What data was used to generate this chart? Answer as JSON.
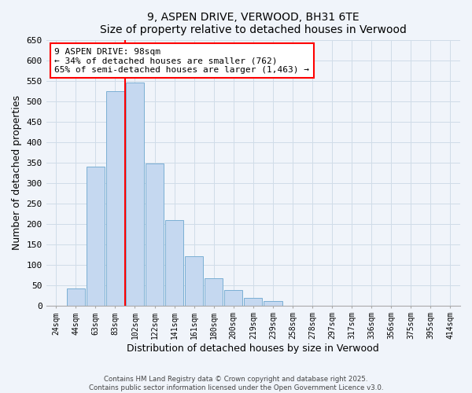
{
  "title": "9, ASPEN DRIVE, VERWOOD, BH31 6TE",
  "subtitle": "Size of property relative to detached houses in Verwood",
  "xlabel": "Distribution of detached houses by size in Verwood",
  "ylabel": "Number of detached properties",
  "bar_labels": [
    "24sqm",
    "44sqm",
    "63sqm",
    "83sqm",
    "102sqm",
    "122sqm",
    "141sqm",
    "161sqm",
    "180sqm",
    "200sqm",
    "219sqm",
    "239sqm",
    "258sqm",
    "278sqm",
    "297sqm",
    "317sqm",
    "336sqm",
    "356sqm",
    "375sqm",
    "395sqm",
    "414sqm"
  ],
  "bar_values": [
    0,
    42,
    340,
    525,
    545,
    348,
    208,
    120,
    67,
    38,
    18,
    11,
    0,
    0,
    0,
    0,
    0,
    0,
    0,
    0,
    0
  ],
  "bar_color": "#c5d8f0",
  "bar_edge_color": "#7bafd4",
  "vline_pos": 3.5,
  "vline_color": "red",
  "ylim": [
    0,
    650
  ],
  "yticks": [
    0,
    50,
    100,
    150,
    200,
    250,
    300,
    350,
    400,
    450,
    500,
    550,
    600,
    650
  ],
  "annotation_title": "9 ASPEN DRIVE: 98sqm",
  "annotation_line1": "← 34% of detached houses are smaller (762)",
  "annotation_line2": "65% of semi-detached houses are larger (1,463) →",
  "footer1": "Contains HM Land Registry data © Crown copyright and database right 2025.",
  "footer2": "Contains public sector information licensed under the Open Government Licence v3.0.",
  "bg_color": "#f0f4fa",
  "grid_color": "#d0dce8"
}
